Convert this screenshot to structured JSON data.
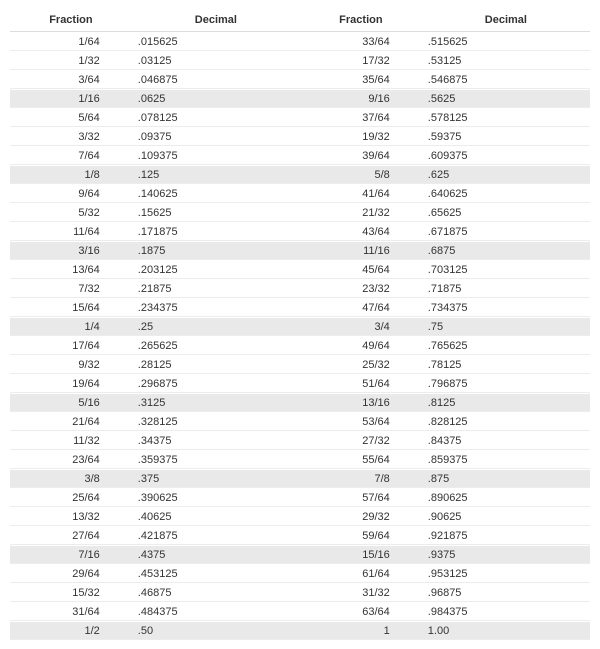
{
  "table": {
    "type": "table",
    "columns": [
      "Fraction",
      "Decimal",
      "Fraction",
      "Decimal"
    ],
    "column_align": [
      "right",
      "left",
      "right",
      "left"
    ],
    "column_widths_pct": [
      21,
      29,
      21,
      29
    ],
    "header_fontsize_pt": 8,
    "body_fontsize_pt": 8,
    "text_color": "#333333",
    "row_background_default": "#ffffff",
    "row_background_highlight": "#e9e9e9",
    "row_border_color": "#ececec",
    "header_border_color": "#dcdcdc",
    "rows": [
      {
        "f1": "1/64",
        "d1": ".015625",
        "f2": "33/64",
        "d2": ".515625",
        "hl": false
      },
      {
        "f1": "1/32",
        "d1": ".03125",
        "f2": "17/32",
        "d2": ".53125",
        "hl": false
      },
      {
        "f1": "3/64",
        "d1": ".046875",
        "f2": "35/64",
        "d2": ".546875",
        "hl": false
      },
      {
        "f1": "1/16",
        "d1": ".0625",
        "f2": "9/16",
        "d2": ".5625",
        "hl": true
      },
      {
        "f1": "5/64",
        "d1": ".078125",
        "f2": "37/64",
        "d2": ".578125",
        "hl": false
      },
      {
        "f1": "3/32",
        "d1": ".09375",
        "f2": "19/32",
        "d2": ".59375",
        "hl": false
      },
      {
        "f1": "7/64",
        "d1": ".109375",
        "f2": "39/64",
        "d2": ".609375",
        "hl": false
      },
      {
        "f1": "1/8",
        "d1": ".125",
        "f2": "5/8",
        "d2": ".625",
        "hl": true
      },
      {
        "f1": "9/64",
        "d1": ".140625",
        "f2": "41/64",
        "d2": ".640625",
        "hl": false
      },
      {
        "f1": "5/32",
        "d1": ".15625",
        "f2": "21/32",
        "d2": ".65625",
        "hl": false
      },
      {
        "f1": "11/64",
        "d1": ".171875",
        "f2": "43/64",
        "d2": ".671875",
        "hl": false
      },
      {
        "f1": "3/16",
        "d1": ".1875",
        "f2": "11/16",
        "d2": ".6875",
        "hl": true
      },
      {
        "f1": "13/64",
        "d1": ".203125",
        "f2": "45/64",
        "d2": ".703125",
        "hl": false
      },
      {
        "f1": "7/32",
        "d1": ".21875",
        "f2": "23/32",
        "d2": ".71875",
        "hl": false
      },
      {
        "f1": "15/64",
        "d1": ".234375",
        "f2": "47/64",
        "d2": ".734375",
        "hl": false
      },
      {
        "f1": "1/4",
        "d1": ".25",
        "f2": "3/4",
        "d2": ".75",
        "hl": true
      },
      {
        "f1": "17/64",
        "d1": ".265625",
        "f2": "49/64",
        "d2": ".765625",
        "hl": false
      },
      {
        "f1": "9/32",
        "d1": ".28125",
        "f2": "25/32",
        "d2": ".78125",
        "hl": false
      },
      {
        "f1": "19/64",
        "d1": ".296875",
        "f2": "51/64",
        "d2": ".796875",
        "hl": false
      },
      {
        "f1": "5/16",
        "d1": ".3125",
        "f2": "13/16",
        "d2": ".8125",
        "hl": true
      },
      {
        "f1": "21/64",
        "d1": ".328125",
        "f2": "53/64",
        "d2": ".828125",
        "hl": false
      },
      {
        "f1": "11/32",
        "d1": ".34375",
        "f2": "27/32",
        "d2": ".84375",
        "hl": false
      },
      {
        "f1": "23/64",
        "d1": ".359375",
        "f2": "55/64",
        "d2": ".859375",
        "hl": false
      },
      {
        "f1": "3/8",
        "d1": ".375",
        "f2": "7/8",
        "d2": ".875",
        "hl": true
      },
      {
        "f1": "25/64",
        "d1": ".390625",
        "f2": "57/64",
        "d2": ".890625",
        "hl": false
      },
      {
        "f1": "13/32",
        "d1": ".40625",
        "f2": "29/32",
        "d2": ".90625",
        "hl": false
      },
      {
        "f1": "27/64",
        "d1": ".421875",
        "f2": "59/64",
        "d2": ".921875",
        "hl": false
      },
      {
        "f1": "7/16",
        "d1": ".4375",
        "f2": "15/16",
        "d2": ".9375",
        "hl": true
      },
      {
        "f1": "29/64",
        "d1": ".453125",
        "f2": "61/64",
        "d2": ".953125",
        "hl": false
      },
      {
        "f1": "15/32",
        "d1": ".46875",
        "f2": "31/32",
        "d2": ".96875",
        "hl": false
      },
      {
        "f1": "31/64",
        "d1": ".484375",
        "f2": "63/64",
        "d2": ".984375",
        "hl": false
      },
      {
        "f1": "1/2",
        "d1": ".50",
        "f2": "1",
        "d2": "1.00",
        "hl": true
      }
    ]
  }
}
